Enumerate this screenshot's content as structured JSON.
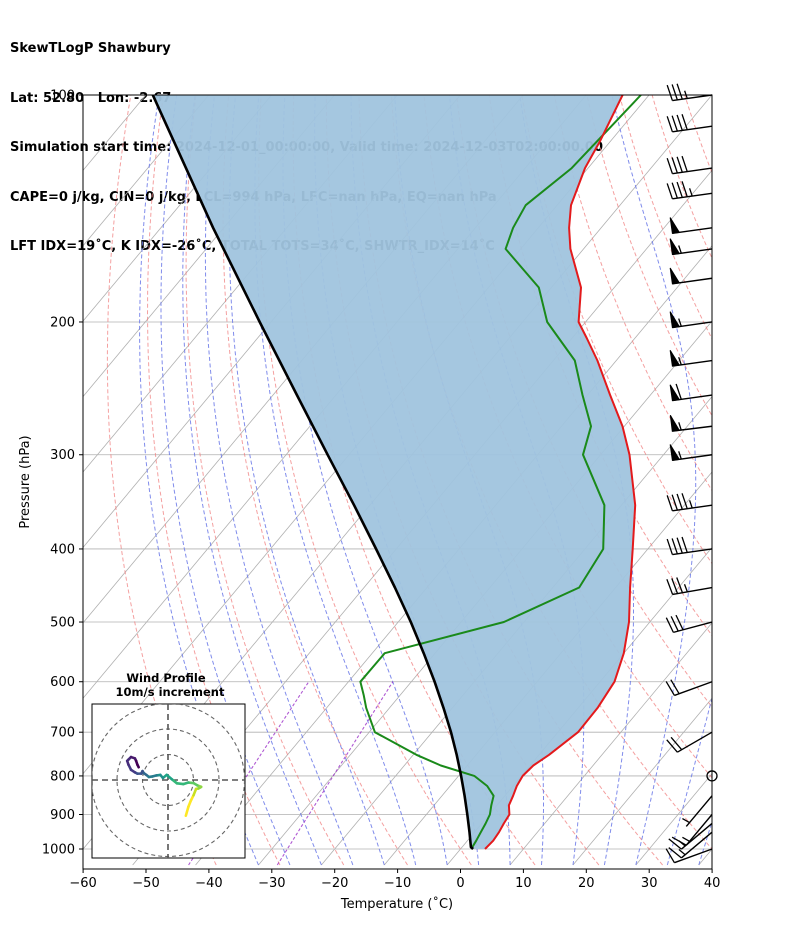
{
  "header": {
    "lines": [
      "SkewTLogP Shawbury",
      "Lat: 52.80   Lon: -2.67",
      "Simulation start time: 2024-12-01_00:00:00, Valid time: 2024-12-03T02:00:00.00",
      "CAPE=0 j/kg, CIN=0 j/kg, LCL=994 hPa, LFC=nan hPa, EQ=nan hPa",
      "LFT IDX=19$^\\circ$C, K IDX=-26$^\\circ$C, TOTAL TOTS=34$^\\circ$C, SHWTR_IDX=14$^\\circ$C"
    ]
  },
  "chart_data": {
    "type": "line",
    "subtype": "skew-t log-p",
    "title": "",
    "xlabel": "Temperature ($^\\circ$C)",
    "ylabel": "Pressure (hPa)",
    "xlim": [
      -60,
      40
    ],
    "ylim": [
      1050,
      100
    ],
    "y_scale": "log",
    "x_ticks": [
      "−60",
      "−50",
      "−40",
      "−30",
      "−20",
      "−10",
      "0",
      "10",
      "20",
      "30",
      "40"
    ],
    "y_ticks": [
      "100",
      "200",
      "300",
      "400",
      "500",
      "600",
      "700",
      "800",
      "900",
      "1000"
    ],
    "grid": true,
    "colors": {
      "temperature": "#e31a1c",
      "dewpoint": "#1a8a1a",
      "parcel": "#000000",
      "shade": "#a0c4de",
      "dry_adiabat": "#f08080",
      "moist_adiabat": "#6a78e8",
      "mixing_ratio": "#9b30c8",
      "isotherm": "#b0b0b0"
    },
    "series": [
      {
        "id": "temperature",
        "p": [
          1000,
          975,
          950,
          925,
          900,
          875,
          850,
          825,
          800,
          775,
          750,
          700,
          650,
          600,
          550,
          500,
          450,
          400,
          350,
          300,
          275,
          250,
          225,
          210,
          200,
          180,
          160,
          150,
          140,
          125,
          115,
          100
        ],
        "t": [
          3.9,
          4.1,
          3.9,
          3.5,
          3.2,
          1.9,
          1.3,
          0.6,
          0.2,
          0.5,
          1.6,
          3.2,
          3.1,
          2.3,
          0.0,
          -3.3,
          -7.7,
          -12.4,
          -17.8,
          -25.4,
          -30.3,
          -36.4,
          -43.0,
          -47.7,
          -51.1,
          -55.3,
          -62.1,
          -65.1,
          -67.8,
          -70.5,
          -71.7,
          -74.2
        ]
      },
      {
        "id": "dewpoint",
        "p": [
          1000,
          975,
          950,
          925,
          900,
          875,
          850,
          825,
          800,
          775,
          750,
          700,
          650,
          625,
          600,
          550,
          500,
          450,
          400,
          350,
          300,
          275,
          250,
          225,
          200,
          180,
          160,
          150,
          140,
          125,
          100
        ],
        "t": [
          1.7,
          1.4,
          1.0,
          0.6,
          0.1,
          -0.9,
          -1.8,
          -4.1,
          -7.5,
          -14.2,
          -19.5,
          -29.1,
          -33.7,
          -35.8,
          -38.1,
          -38.0,
          -23.2,
          -15.8,
          -17.1,
          -22.7,
          -32.8,
          -35.3,
          -40.8,
          -46.6,
          -56.1,
          -62.0,
          -72.4,
          -74.0,
          -75.0,
          -72.6,
          -71.3
        ]
      },
      {
        "id": "parcel",
        "p": [
          1000,
          994,
          950,
          900,
          850,
          800,
          750,
          700,
          650,
          600,
          550,
          500,
          450,
          400,
          350,
          300,
          250,
          200,
          150,
          100
        ],
        "t": [
          2.0,
          1.4,
          -0.8,
          -3.5,
          -6.4,
          -9.6,
          -13.1,
          -17.0,
          -21.4,
          -26.3,
          -31.8,
          -38.0,
          -45.1,
          -53.2,
          -62.5,
          -73.4,
          -86.2,
          -101.8,
          -121.7,
          -148.9
        ]
      }
    ],
    "wind_barbs": {
      "p": [
        1000,
        950,
        925,
        900,
        850,
        800,
        700,
        600,
        500,
        450,
        400,
        350,
        300,
        275,
        250,
        225,
        200,
        175,
        160,
        150,
        135,
        125,
        110,
        100
      ],
      "speed_kt": [
        10,
        15,
        15,
        15,
        5,
        0,
        20,
        20,
        30,
        35,
        40,
        45,
        55,
        55,
        60,
        55,
        55,
        50,
        55,
        50,
        45,
        40,
        40,
        35
      ],
      "direction_deg": [
        250,
        230,
        230,
        220,
        220,
        0,
        240,
        250,
        255,
        260,
        262,
        262,
        262,
        263,
        262,
        262,
        262,
        262,
        262,
        262,
        262,
        262,
        262,
        262
      ]
    },
    "inset": {
      "title": "Wind Profile",
      "subtitle": "10m/s increment",
      "type": "hodograph",
      "rings_ms": [
        10,
        20,
        30
      ],
      "u": [
        7,
        8,
        9,
        10,
        11,
        12,
        12.5,
        13,
        11.5,
        10,
        8,
        6,
        3.5,
        1.5,
        -0.5,
        -2,
        -3,
        -4.5,
        -6,
        -7.5,
        -8.5,
        -9.5,
        -10,
        -10.5,
        -12,
        -13,
        -14.5,
        -15.5,
        -16,
        -15.5,
        -14.5,
        -13,
        -12.5,
        -12,
        -11.5
      ],
      "v": [
        -14,
        -10.5,
        -8,
        -6,
        -3.5,
        -3.3,
        -3,
        -2.7,
        -2.1,
        -1.2,
        -1.0,
        -1.6,
        -1.3,
        0.3,
        2.0,
        0.8,
        2.0,
        1.8,
        1.4,
        1.2,
        2.0,
        2.7,
        3.5,
        2.5,
        2.5,
        3.0,
        4.0,
        6.0,
        7.5,
        8.0,
        9.0,
        8.5,
        7.5,
        6.0,
        5.0
      ]
    }
  }
}
